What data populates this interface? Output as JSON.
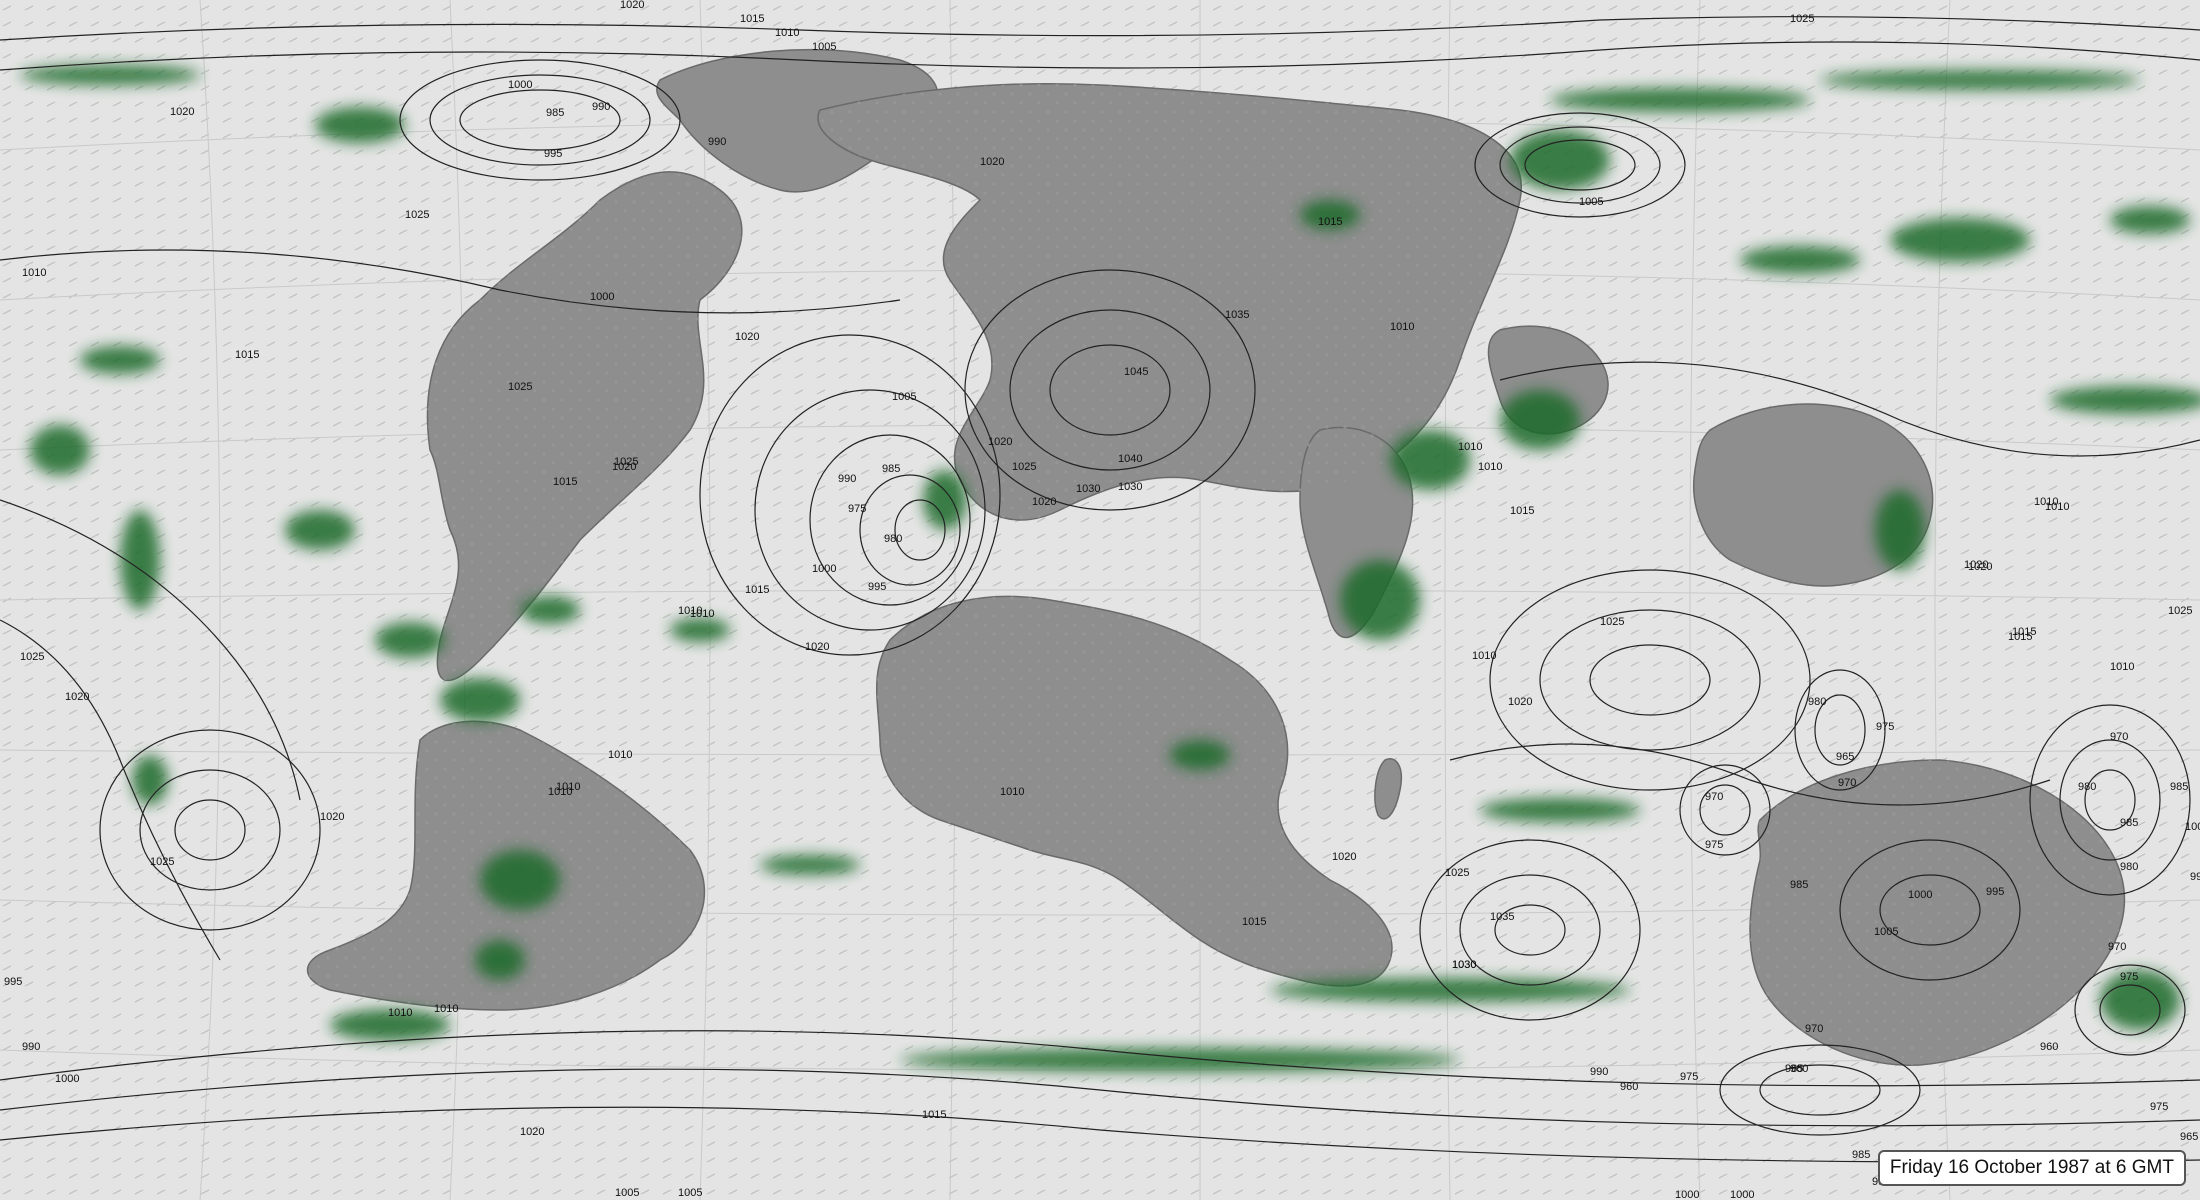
{
  "map": {
    "date_label": "Friday 16 October 1987 at 6 GMT",
    "colors": {
      "ocean": "#e4e4e4",
      "land": "#8c8c8c",
      "isobar": "#222222",
      "precipitation": "#1f6b2a",
      "graticule": "#c4c4c4"
    },
    "isobar_labels": [
      "1020",
      "1020",
      "1015",
      "1010",
      "1005",
      "1025",
      "1000",
      "985",
      "990",
      "995",
      "990",
      "1020",
      "1025",
      "1010",
      "1015",
      "1000",
      "1020",
      "1025",
      "1020",
      "1015",
      "1025",
      "1010",
      "1020",
      "1005",
      "990",
      "985",
      "975",
      "980",
      "1000",
      "995",
      "1015",
      "1010",
      "1020",
      "1025",
      "1030",
      "1035",
      "1045",
      "1040",
      "1030",
      "1020",
      "1015",
      "1010",
      "1010",
      "1015",
      "1010",
      "1005",
      "1025",
      "1020",
      "1010",
      "1020",
      "1025",
      "1030",
      "1020",
      "1010",
      "1010",
      "1010",
      "1020",
      "1025",
      "1035",
      "1030",
      "1015",
      "1010",
      "970",
      "975",
      "985",
      "980",
      "975",
      "965",
      "970",
      "1000",
      "995",
      "1005",
      "1010",
      "1010",
      "1020",
      "1015",
      "1025",
      "970",
      "980",
      "985",
      "970",
      "975",
      "960",
      "980",
      "990",
      "1000",
      "1010",
      "1020",
      "1015",
      "990",
      "960",
      "975",
      "965",
      "960",
      "970",
      "985",
      "995",
      "1005",
      "1005",
      "1000",
      "1000",
      "1010",
      "1025",
      "1020",
      "1010",
      "1015",
      "965",
      "975",
      "990",
      "1000",
      "985",
      "995"
    ]
  }
}
